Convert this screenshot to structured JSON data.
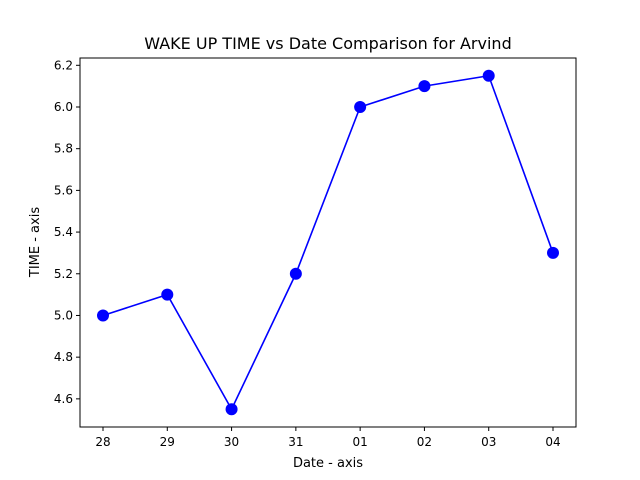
{
  "chart_data": {
    "type": "line",
    "title": "WAKE UP TIME vs Date Comparison for Arvind",
    "xlabel": "Date - axis",
    "ylabel": "TIME - axis",
    "categories": [
      "28",
      "29",
      "30",
      "31",
      "01",
      "02",
      "03",
      "04"
    ],
    "series": [
      {
        "values": [
          5.0,
          5.1,
          4.55,
          5.2,
          6.0,
          6.1,
          6.15,
          5.3
        ],
        "color": "#0000ff",
        "marker": "circle"
      }
    ],
    "ylim": [
      4.465,
      6.235
    ],
    "yticks": [
      "4.6",
      "4.8",
      "5.0",
      "5.2",
      "5.4",
      "5.6",
      "5.8",
      "6.0",
      "6.2"
    ],
    "grid": false,
    "legend": "none"
  }
}
